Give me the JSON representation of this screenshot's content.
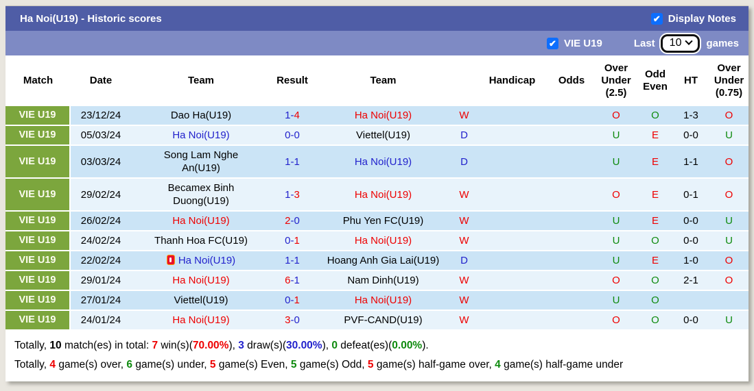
{
  "palette": {
    "title_bar": "#4f5da6",
    "sub_bar": "#7e8ac4",
    "green_badge": "#7ca63d",
    "row_odd": "#cbe4f6",
    "row_even": "#e8f3fb",
    "red": "#ee0000",
    "blue": "#2222cc",
    "green": "#0e8a0e",
    "black": "#000000",
    "checkbox_blue": "#0d6efd",
    "page_bg": "#e9e6df"
  },
  "header": {
    "title": "Ha Noi(U19) - Historic scores",
    "display_notes_label": "Display Notes",
    "display_notes_checked": true,
    "league_filter_label": "VIE U19",
    "league_filter_checked": true,
    "last_label": "Last",
    "games_count": "10",
    "games_label": "games"
  },
  "table": {
    "columns": [
      "Match",
      "Date",
      "Team",
      "Result",
      "Team",
      "",
      "Handicap",
      "Odds",
      "Over Under (2.5)",
      "Odd Even",
      "HT",
      "Over Under (0.75)"
    ],
    "rows": [
      {
        "league": "VIE U19",
        "date": "23/12/24",
        "team1": {
          "name": "Dao Ha(U19)",
          "color": "black",
          "red_card": false
        },
        "result": {
          "left": "1",
          "right": "4",
          "left_color": "blue",
          "right_color": "red"
        },
        "team2": {
          "name": "Ha Noi(U19)",
          "color": "red"
        },
        "outcome": {
          "text": "W",
          "color": "red"
        },
        "handicap": "",
        "odds": "",
        "ou25": {
          "text": "O",
          "color": "red"
        },
        "odd_even": {
          "text": "O",
          "color": "green"
        },
        "ht": "1-3",
        "ou075": {
          "text": "O",
          "color": "red"
        }
      },
      {
        "league": "VIE U19",
        "date": "05/03/24",
        "team1": {
          "name": "Ha Noi(U19)",
          "color": "blue",
          "red_card": false
        },
        "result": {
          "left": "0",
          "right": "0",
          "left_color": "blue",
          "right_color": "blue"
        },
        "team2": {
          "name": "Viettel(U19)",
          "color": "black"
        },
        "outcome": {
          "text": "D",
          "color": "blue"
        },
        "handicap": "",
        "odds": "",
        "ou25": {
          "text": "U",
          "color": "green"
        },
        "odd_even": {
          "text": "E",
          "color": "red"
        },
        "ht": "0-0",
        "ou075": {
          "text": "U",
          "color": "green"
        }
      },
      {
        "league": "VIE U19",
        "date": "03/03/24",
        "team1": {
          "name": "Song Lam Nghe An(U19)",
          "color": "black",
          "red_card": false
        },
        "result": {
          "left": "1",
          "right": "1",
          "left_color": "blue",
          "right_color": "blue"
        },
        "team2": {
          "name": "Ha Noi(U19)",
          "color": "blue"
        },
        "outcome": {
          "text": "D",
          "color": "blue"
        },
        "handicap": "",
        "odds": "",
        "ou25": {
          "text": "U",
          "color": "green"
        },
        "odd_even": {
          "text": "E",
          "color": "red"
        },
        "ht": "1-1",
        "ou075": {
          "text": "O",
          "color": "red"
        }
      },
      {
        "league": "VIE U19",
        "date": "29/02/24",
        "team1": {
          "name": "Becamex Binh Duong(U19)",
          "color": "black",
          "red_card": false
        },
        "result": {
          "left": "1",
          "right": "3",
          "left_color": "blue",
          "right_color": "red"
        },
        "team2": {
          "name": "Ha Noi(U19)",
          "color": "red"
        },
        "outcome": {
          "text": "W",
          "color": "red"
        },
        "handicap": "",
        "odds": "",
        "ou25": {
          "text": "O",
          "color": "red"
        },
        "odd_even": {
          "text": "E",
          "color": "red"
        },
        "ht": "0-1",
        "ou075": {
          "text": "O",
          "color": "red"
        }
      },
      {
        "league": "VIE U19",
        "date": "26/02/24",
        "team1": {
          "name": "Ha Noi(U19)",
          "color": "red",
          "red_card": false
        },
        "result": {
          "left": "2",
          "right": "0",
          "left_color": "red",
          "right_color": "blue"
        },
        "team2": {
          "name": "Phu Yen FC(U19)",
          "color": "black"
        },
        "outcome": {
          "text": "W",
          "color": "red"
        },
        "handicap": "",
        "odds": "",
        "ou25": {
          "text": "U",
          "color": "green"
        },
        "odd_even": {
          "text": "E",
          "color": "red"
        },
        "ht": "0-0",
        "ou075": {
          "text": "U",
          "color": "green"
        }
      },
      {
        "league": "VIE U19",
        "date": "24/02/24",
        "team1": {
          "name": "Thanh Hoa FC(U19)",
          "color": "black",
          "red_card": false
        },
        "result": {
          "left": "0",
          "right": "1",
          "left_color": "blue",
          "right_color": "red"
        },
        "team2": {
          "name": "Ha Noi(U19)",
          "color": "red"
        },
        "outcome": {
          "text": "W",
          "color": "red"
        },
        "handicap": "",
        "odds": "",
        "ou25": {
          "text": "U",
          "color": "green"
        },
        "odd_even": {
          "text": "O",
          "color": "green"
        },
        "ht": "0-0",
        "ou075": {
          "text": "U",
          "color": "green"
        }
      },
      {
        "league": "VIE U19",
        "date": "22/02/24",
        "team1": {
          "name": "Ha Noi(U19)",
          "color": "blue",
          "red_card": true
        },
        "result": {
          "left": "1",
          "right": "1",
          "left_color": "blue",
          "right_color": "blue"
        },
        "team2": {
          "name": "Hoang Anh Gia Lai(U19)",
          "color": "black"
        },
        "outcome": {
          "text": "D",
          "color": "blue"
        },
        "handicap": "",
        "odds": "",
        "ou25": {
          "text": "U",
          "color": "green"
        },
        "odd_even": {
          "text": "E",
          "color": "red"
        },
        "ht": "1-0",
        "ou075": {
          "text": "O",
          "color": "red"
        }
      },
      {
        "league": "VIE U19",
        "date": "29/01/24",
        "team1": {
          "name": "Ha Noi(U19)",
          "color": "red",
          "red_card": false
        },
        "result": {
          "left": "6",
          "right": "1",
          "left_color": "red",
          "right_color": "blue"
        },
        "team2": {
          "name": "Nam Dinh(U19)",
          "color": "black"
        },
        "outcome": {
          "text": "W",
          "color": "red"
        },
        "handicap": "",
        "odds": "",
        "ou25": {
          "text": "O",
          "color": "red"
        },
        "odd_even": {
          "text": "O",
          "color": "green"
        },
        "ht": "2-1",
        "ou075": {
          "text": "O",
          "color": "red"
        }
      },
      {
        "league": "VIE U19",
        "date": "27/01/24",
        "team1": {
          "name": "Viettel(U19)",
          "color": "black",
          "red_card": false
        },
        "result": {
          "left": "0",
          "right": "1",
          "left_color": "blue",
          "right_color": "red"
        },
        "team2": {
          "name": "Ha Noi(U19)",
          "color": "red"
        },
        "outcome": {
          "text": "W",
          "color": "red"
        },
        "handicap": "",
        "odds": "",
        "ou25": {
          "text": "U",
          "color": "green"
        },
        "odd_even": {
          "text": "O",
          "color": "green"
        },
        "ht": "",
        "ou075": {
          "text": "",
          "color": "black"
        }
      },
      {
        "league": "VIE U19",
        "date": "24/01/24",
        "team1": {
          "name": "Ha Noi(U19)",
          "color": "red",
          "red_card": false
        },
        "result": {
          "left": "3",
          "right": "0",
          "left_color": "red",
          "right_color": "blue"
        },
        "team2": {
          "name": "PVF-CAND(U19)",
          "color": "black"
        },
        "outcome": {
          "text": "W",
          "color": "red"
        },
        "handicap": "",
        "odds": "",
        "ou25": {
          "text": "O",
          "color": "red"
        },
        "odd_even": {
          "text": "O",
          "color": "green"
        },
        "ht": "0-0",
        "ou075": {
          "text": "U",
          "color": "green"
        }
      }
    ]
  },
  "summary": {
    "line1": [
      {
        "t": "Totally, ",
        "c": "black",
        "b": false
      },
      {
        "t": "10",
        "c": "black",
        "b": true
      },
      {
        "t": " match(es) in total: ",
        "c": "black",
        "b": false
      },
      {
        "t": "7",
        "c": "red",
        "b": true
      },
      {
        "t": " win(s)(",
        "c": "black",
        "b": false
      },
      {
        "t": "70.00%",
        "c": "red",
        "b": true
      },
      {
        "t": "), ",
        "c": "black",
        "b": false
      },
      {
        "t": "3",
        "c": "blue",
        "b": true
      },
      {
        "t": " draw(s)(",
        "c": "black",
        "b": false
      },
      {
        "t": "30.00%",
        "c": "blue",
        "b": true
      },
      {
        "t": "), ",
        "c": "black",
        "b": false
      },
      {
        "t": "0",
        "c": "green",
        "b": true
      },
      {
        "t": " defeat(es)(",
        "c": "black",
        "b": false
      },
      {
        "t": "0.00%",
        "c": "green",
        "b": true
      },
      {
        "t": ").",
        "c": "black",
        "b": false
      }
    ],
    "line2": [
      {
        "t": "Totally, ",
        "c": "black",
        "b": false
      },
      {
        "t": "4",
        "c": "red",
        "b": true
      },
      {
        "t": " game(s) over, ",
        "c": "black",
        "b": false
      },
      {
        "t": "6",
        "c": "green",
        "b": true
      },
      {
        "t": " game(s) under, ",
        "c": "black",
        "b": false
      },
      {
        "t": "5",
        "c": "red",
        "b": true
      },
      {
        "t": " game(s) Even, ",
        "c": "black",
        "b": false
      },
      {
        "t": "5",
        "c": "green",
        "b": true
      },
      {
        "t": " game(s) Odd, ",
        "c": "black",
        "b": false
      },
      {
        "t": "5",
        "c": "red",
        "b": true
      },
      {
        "t": " game(s) half-game over, ",
        "c": "black",
        "b": false
      },
      {
        "t": "4",
        "c": "green",
        "b": true
      },
      {
        "t": " game(s) half-game under",
        "c": "black",
        "b": false
      }
    ]
  }
}
